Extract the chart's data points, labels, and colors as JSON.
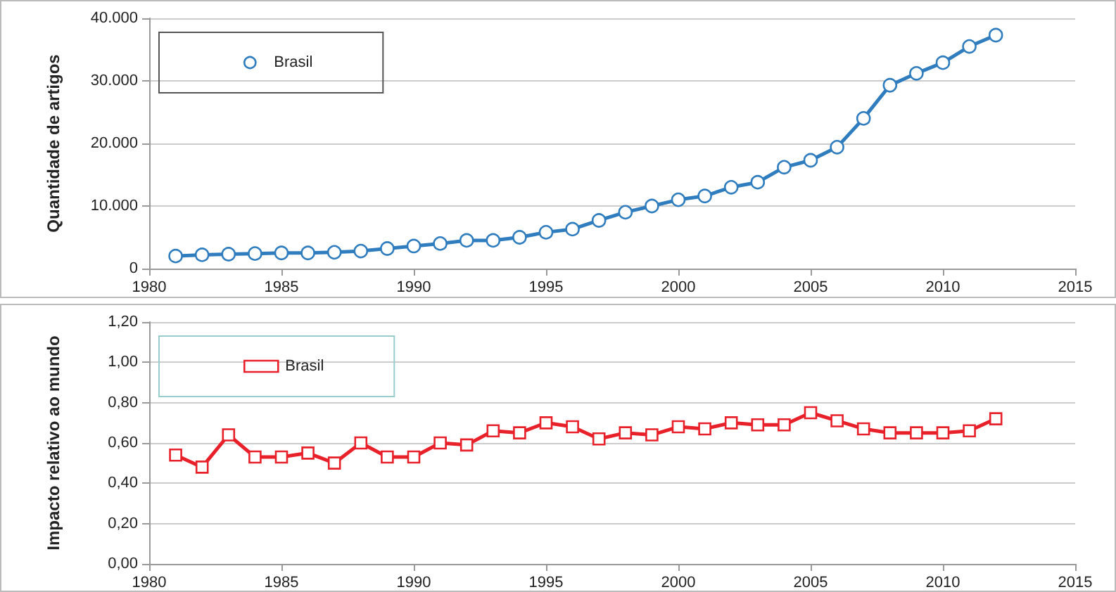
{
  "chart_data": [
    {
      "type": "line",
      "ylabel": "Quantidade de artigos",
      "x": [
        1981,
        1982,
        1983,
        1984,
        1985,
        1986,
        1987,
        1988,
        1989,
        1990,
        1991,
        1992,
        1993,
        1994,
        1995,
        1996,
        1997,
        1998,
        1999,
        2000,
        2001,
        2002,
        2003,
        2004,
        2005,
        2006,
        2007,
        2008,
        2009,
        2010,
        2011,
        2012
      ],
      "series": [
        {
          "name": "Brasil",
          "color": "#2f7dbf",
          "values": [
            2000,
            2200,
            2300,
            2400,
            2500,
            2500,
            2600,
            2800,
            3200,
            3600,
            4000,
            4500,
            4500,
            5000,
            5800,
            6300,
            7700,
            9000,
            10000,
            11000,
            11600,
            13000,
            13800,
            16200,
            17300,
            19400,
            24000,
            29300,
            31200,
            32900,
            35500,
            37300
          ]
        }
      ],
      "xlim": [
        1980,
        2015
      ],
      "xticks": [
        1980,
        1985,
        1990,
        1995,
        2000,
        2005,
        2010,
        2015
      ],
      "ylim": [
        0,
        40000
      ],
      "yticks": [
        {
          "value": 0,
          "label": "0"
        },
        {
          "value": 10000,
          "label": "10.000"
        },
        {
          "value": 20000,
          "label": "20.000"
        },
        {
          "value": 30000,
          "label": "30.000"
        },
        {
          "value": 40000,
          "label": "40.000"
        }
      ],
      "grid": "y",
      "legend": "top left",
      "marker": "circle",
      "line_style": "solid"
    },
    {
      "type": "line",
      "ylabel": "Impacto relativo ao mundo",
      "x": [
        1981,
        1982,
        1983,
        1984,
        1985,
        1986,
        1987,
        1988,
        1989,
        1990,
        1991,
        1992,
        1993,
        1994,
        1995,
        1996,
        1997,
        1998,
        1999,
        2000,
        2001,
        2002,
        2003,
        2004,
        2005,
        2006,
        2007,
        2008,
        2009,
        2010,
        2011,
        2012
      ],
      "series": [
        {
          "name": "Brasil",
          "color": "#e8202a",
          "values": [
            0.54,
            0.48,
            0.64,
            0.53,
            0.53,
            0.55,
            0.5,
            0.6,
            0.53,
            0.53,
            0.6,
            0.59,
            0.66,
            0.65,
            0.7,
            0.68,
            0.62,
            0.65,
            0.64,
            0.68,
            0.67,
            0.7,
            0.69,
            0.69,
            0.75,
            0.71,
            0.67,
            0.65,
            0.65,
            0.65,
            0.66,
            0.72
          ]
        }
      ],
      "xlim": [
        1980,
        2015
      ],
      "xticks": [
        1980,
        1985,
        1990,
        1995,
        2000,
        2005,
        2010,
        2015
      ],
      "ylim": [
        0,
        1.2
      ],
      "yticks": [
        {
          "value": 0,
          "label": "0,00"
        },
        {
          "value": 0.2,
          "label": "0,20"
        },
        {
          "value": 0.4,
          "label": "0,40"
        },
        {
          "value": 0.6,
          "label": "0,60"
        },
        {
          "value": 0.8,
          "label": "0,80"
        },
        {
          "value": 1.0,
          "label": "1,00"
        },
        {
          "value": 1.2,
          "label": "1,20"
        }
      ],
      "grid": "y",
      "legend": "top left",
      "marker": "square",
      "line_style": "solid"
    }
  ]
}
